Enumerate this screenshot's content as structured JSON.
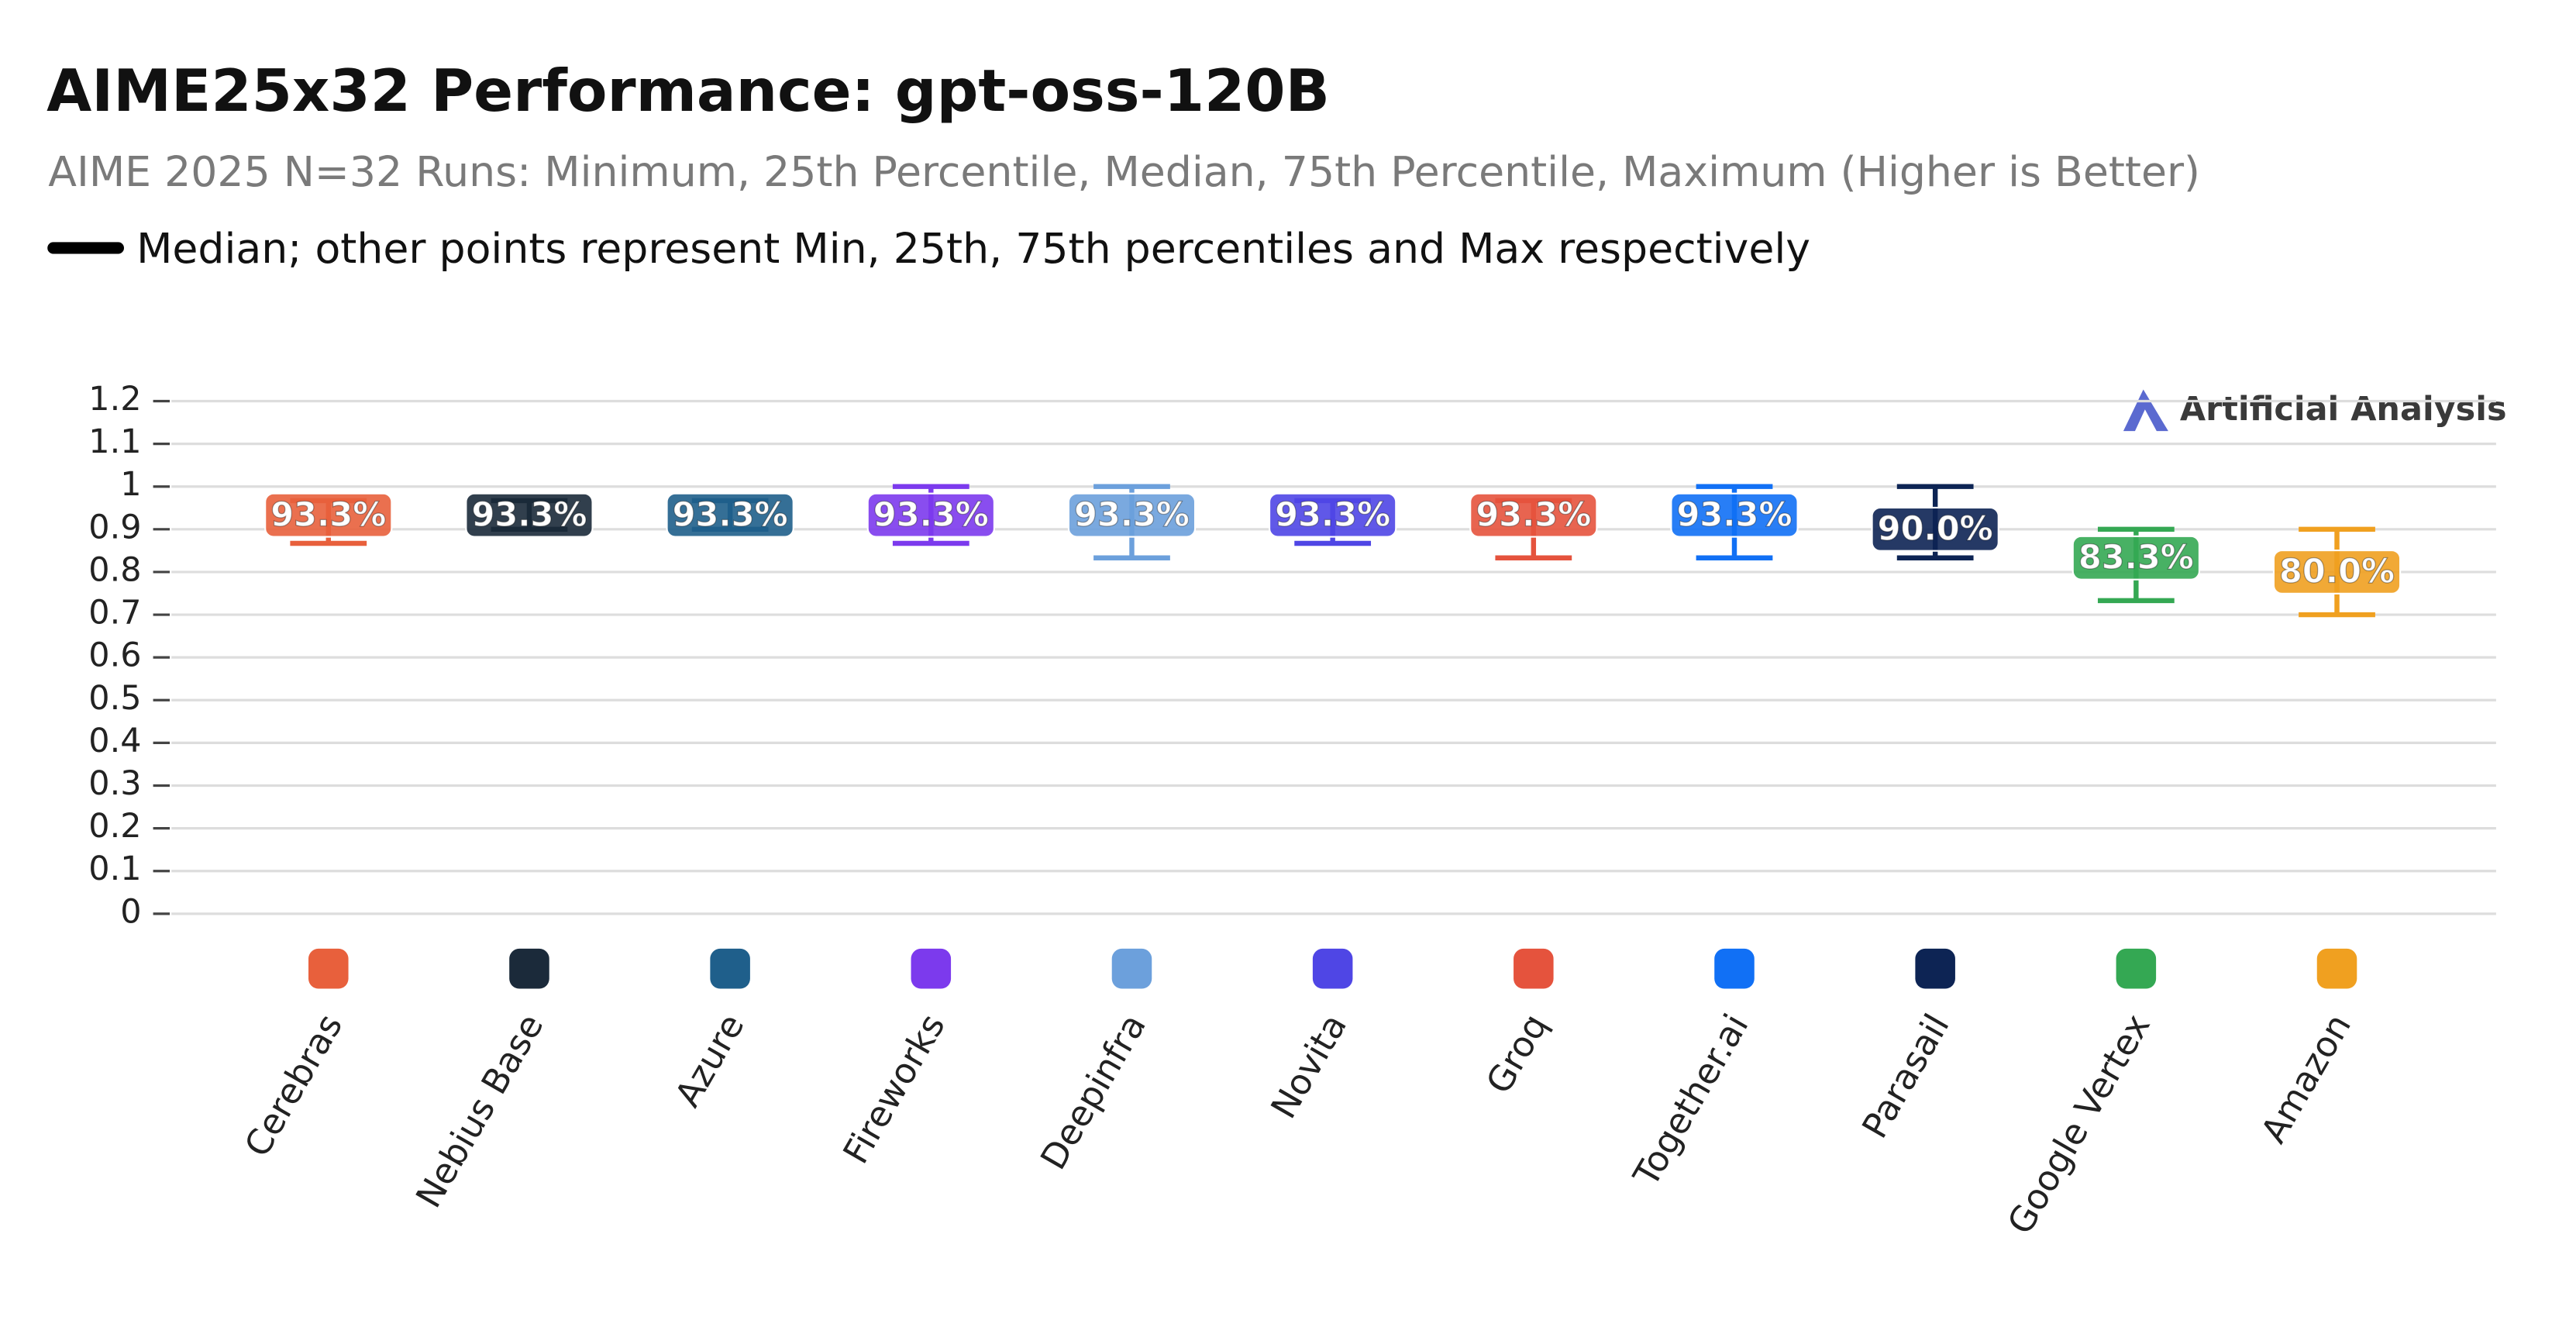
{
  "chart_data": {
    "type": "range",
    "title": "AIME25x32 Performance: gpt-oss-120B",
    "subtitle": "AIME 2025 N=32 Runs: Minimum, 25th Percentile, Median, 75th Percentile, Maximum (Higher is Better)",
    "legend": "Median; other points represent Min, 25th, 75th percentiles and Max respectively",
    "watermark": "Artificial Analysis",
    "categories": [
      "Cerebras",
      "Nebius Base",
      "Azure",
      "Fireworks",
      "Deepinfra",
      "Novita",
      "Groq",
      "Together.ai",
      "Parasail",
      "Google Vertex",
      "Amazon"
    ],
    "colors": [
      "#e8603c",
      "#1b2a3a",
      "#1f5f8b",
      "#7c3aed",
      "#6ca0dc",
      "#4f46e5",
      "#e5533d",
      "#1170f5",
      "#0d2454",
      "#34a853",
      "#f0a020"
    ],
    "min": [
      0.867,
      0.9,
      0.9,
      0.867,
      0.833,
      0.867,
      0.833,
      0.833,
      0.833,
      0.733,
      0.7
    ],
    "median": [
      0.933,
      0.933,
      0.933,
      0.933,
      0.933,
      0.933,
      0.933,
      0.933,
      0.9,
      0.833,
      0.8
    ],
    "max": [
      0.967,
      0.967,
      0.967,
      1.0,
      1.0,
      0.967,
      0.967,
      1.0,
      1.0,
      0.9,
      0.9
    ],
    "value_labels": [
      "93.3%",
      "93.3%",
      "93.3%",
      "93.3%",
      "93.3%",
      "93.3%",
      "93.3%",
      "93.3%",
      "90.0%",
      "83.3%",
      "80.0%"
    ],
    "ylim": [
      0,
      1.2
    ],
    "yticks": [
      0,
      0.1,
      0.2,
      0.3,
      0.4,
      0.5,
      0.6,
      0.7,
      0.8,
      0.9,
      1,
      1.1,
      1.2
    ],
    "grid": true
  }
}
